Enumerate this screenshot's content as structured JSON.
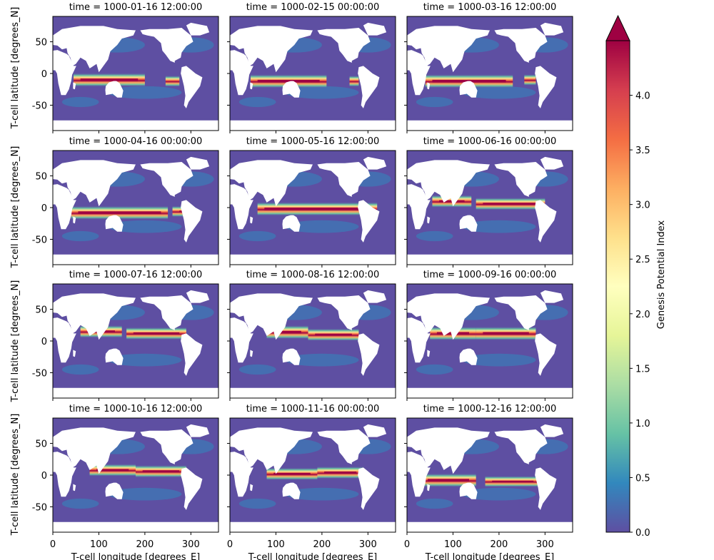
{
  "chart_data": {
    "type": "heatmap",
    "layout": {
      "rows": 4,
      "cols": 3
    },
    "panel_titles": [
      "time = 1000-01-16 12:00:00",
      "time = 1000-02-15 00:00:00",
      "time = 1000-03-16 12:00:00",
      "time = 1000-04-16 00:00:00",
      "time = 1000-05-16 12:00:00",
      "time = 1000-06-16 00:00:00",
      "time = 1000-07-16 12:00:00",
      "time = 1000-08-16 12:00:00",
      "time = 1000-09-16 00:00:00",
      "time = 1000-10-16 12:00:00",
      "time = 1000-11-16 00:00:00",
      "time = 1000-12-16 12:00:00"
    ],
    "xlabel": "T-cell longitude [degrees_E]",
    "ylabel": "T-cell latitude [degrees_N]",
    "xlim": [
      0,
      360
    ],
    "ylim": [
      -90,
      90
    ],
    "xticks": [
      0,
      100,
      200,
      300
    ],
    "yticks": [
      -50,
      0,
      50
    ],
    "colorbar": {
      "label": "Genesis Potential Index",
      "vmin": 0.0,
      "vmax": 4.5,
      "ticks": [
        "0.0",
        "0.5",
        "1.0",
        "1.5",
        "2.0",
        "2.5",
        "3.0",
        "3.5",
        "4.0"
      ],
      "extend": "max",
      "colormap": "Spectral_r",
      "colors": [
        "#5e4fa2",
        "#3288bd",
        "#66c2a5",
        "#abdda4",
        "#e6f598",
        "#ffffbf",
        "#fee08b",
        "#fdae61",
        "#f46d43",
        "#d53e4f",
        "#9e0142"
      ]
    },
    "land_color": "#ffffff",
    "field_description": "Genesis Potential Index per month; maxima (above 4.0) in bands near the equator"
  }
}
